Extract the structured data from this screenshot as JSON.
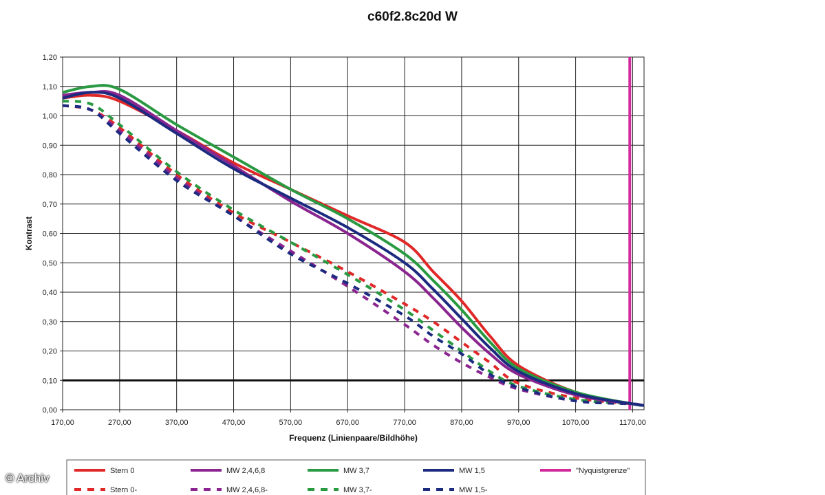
{
  "chart_data": {
    "type": "line",
    "title": "c60f2.8c20d W",
    "xlabel": "Frequenz (Linienpaare/Bildhöhe)",
    "ylabel": "Kontrast",
    "xlim": [
      170,
      1190
    ],
    "ylim": [
      0,
      1.2
    ],
    "x_ticks": [
      "170,00",
      "270,00",
      "370,00",
      "470,00",
      "570,00",
      "670,00",
      "770,00",
      "870,00",
      "970,00",
      "1070,00",
      "1170,00"
    ],
    "y_ticks": [
      "0,00",
      "0,10",
      "0,20",
      "0,30",
      "0,40",
      "0,50",
      "0,60",
      "0,70",
      "0,80",
      "0,90",
      "1,00",
      "1,10",
      "1,20"
    ],
    "grid": true,
    "legend_position": "bottom",
    "reference_lines": [
      {
        "orientation": "horizontal",
        "value": 0.1,
        "color": "#111111"
      },
      {
        "orientation": "vertical",
        "value": 1165,
        "color": "#d12a9c",
        "name": "\"Nyquistgrenze\""
      }
    ],
    "series": [
      {
        "name": "Stern 0",
        "color": "#e02828",
        "style": "solid",
        "x": [
          170,
          220,
          270,
          370,
          470,
          570,
          670,
          770,
          820,
          870,
          920,
          970,
          1070,
          1170,
          1190
        ],
        "y": [
          1.06,
          1.07,
          1.05,
          0.95,
          0.84,
          0.75,
          0.66,
          0.57,
          0.47,
          0.37,
          0.25,
          0.15,
          0.06,
          0.02,
          0.015
        ]
      },
      {
        "name": "MW 2,4,6,8",
        "color": "#8a2590",
        "style": "solid",
        "x": [
          170,
          220,
          270,
          370,
          470,
          570,
          670,
          770,
          820,
          870,
          920,
          970,
          1070,
          1170,
          1190
        ],
        "y": [
          1.07,
          1.08,
          1.07,
          0.95,
          0.83,
          0.71,
          0.6,
          0.47,
          0.38,
          0.28,
          0.19,
          0.12,
          0.05,
          0.02,
          0.015
        ]
      },
      {
        "name": "MW 3,7",
        "color": "#2a9a42",
        "style": "solid",
        "x": [
          170,
          220,
          270,
          370,
          470,
          570,
          670,
          770,
          820,
          870,
          920,
          970,
          1070,
          1170,
          1190
        ],
        "y": [
          1.08,
          1.1,
          1.09,
          0.97,
          0.86,
          0.75,
          0.65,
          0.53,
          0.44,
          0.34,
          0.23,
          0.14,
          0.06,
          0.02,
          0.015
        ]
      },
      {
        "name": "MW 1,5",
        "color": "#1c2a80",
        "style": "solid",
        "x": [
          170,
          220,
          270,
          370,
          470,
          570,
          670,
          770,
          820,
          870,
          920,
          970,
          1070,
          1170,
          1190
        ],
        "y": [
          1.06,
          1.08,
          1.06,
          0.94,
          0.82,
          0.72,
          0.62,
          0.5,
          0.41,
          0.31,
          0.21,
          0.13,
          0.055,
          0.02,
          0.015
        ]
      },
      {
        "name": "Stern 0-",
        "color": "#e02828",
        "style": "dashed",
        "x": [
          170,
          220,
          270,
          370,
          470,
          570,
          670,
          770,
          820,
          870,
          920,
          970,
          1070,
          1170,
          1190
        ],
        "y": [
          1.035,
          1.02,
          0.96,
          0.8,
          0.67,
          0.57,
          0.47,
          0.36,
          0.3,
          0.23,
          0.16,
          0.09,
          0.04,
          0.02,
          0.015
        ]
      },
      {
        "name": "MW 2,4,6,8-",
        "color": "#8a2590",
        "style": "dashed",
        "x": [
          170,
          220,
          270,
          370,
          470,
          570,
          670,
          770,
          820,
          870,
          920,
          970,
          1070,
          1170,
          1190
        ],
        "y": [
          1.035,
          1.02,
          0.95,
          0.79,
          0.66,
          0.54,
          0.42,
          0.29,
          0.22,
          0.16,
          0.11,
          0.07,
          0.03,
          0.02,
          0.015
        ]
      },
      {
        "name": "MW 3,7-",
        "color": "#2a9a42",
        "style": "dashed",
        "x": [
          170,
          220,
          270,
          370,
          470,
          570,
          670,
          770,
          820,
          870,
          920,
          970,
          1070,
          1170,
          1190
        ],
        "y": [
          1.05,
          1.04,
          0.97,
          0.81,
          0.68,
          0.57,
          0.46,
          0.34,
          0.27,
          0.2,
          0.13,
          0.08,
          0.035,
          0.02,
          0.015
        ]
      },
      {
        "name": "MW 1,5-",
        "color": "#1c2a80",
        "style": "dashed",
        "x": [
          170,
          220,
          270,
          370,
          470,
          570,
          670,
          770,
          820,
          870,
          920,
          970,
          1070,
          1170,
          1190
        ],
        "y": [
          1.035,
          1.02,
          0.94,
          0.78,
          0.66,
          0.53,
          0.43,
          0.32,
          0.25,
          0.19,
          0.12,
          0.075,
          0.03,
          0.02,
          0.015
        ]
      }
    ],
    "legend": [
      {
        "label": "Stern 0",
        "color": "#e02828",
        "style": "solid"
      },
      {
        "label": "MW 2,4,6,8",
        "color": "#8a2590",
        "style": "solid"
      },
      {
        "label": "MW 3,7",
        "color": "#2a9a42",
        "style": "solid"
      },
      {
        "label": "MW 1,5",
        "color": "#1c2a80",
        "style": "solid"
      },
      {
        "label": "\"Nyquistgrenze\"",
        "color": "#d12a9c",
        "style": "solid"
      },
      {
        "label": "Stern 0-",
        "color": "#e02828",
        "style": "dashed"
      },
      {
        "label": "MW 2,4,6,8-",
        "color": "#8a2590",
        "style": "dashed"
      },
      {
        "label": "MW 3,7-",
        "color": "#2a9a42",
        "style": "dashed"
      },
      {
        "label": "MW 1,5-",
        "color": "#1c2a80",
        "style": "dashed"
      }
    ]
  },
  "watermark": "© Archiv"
}
